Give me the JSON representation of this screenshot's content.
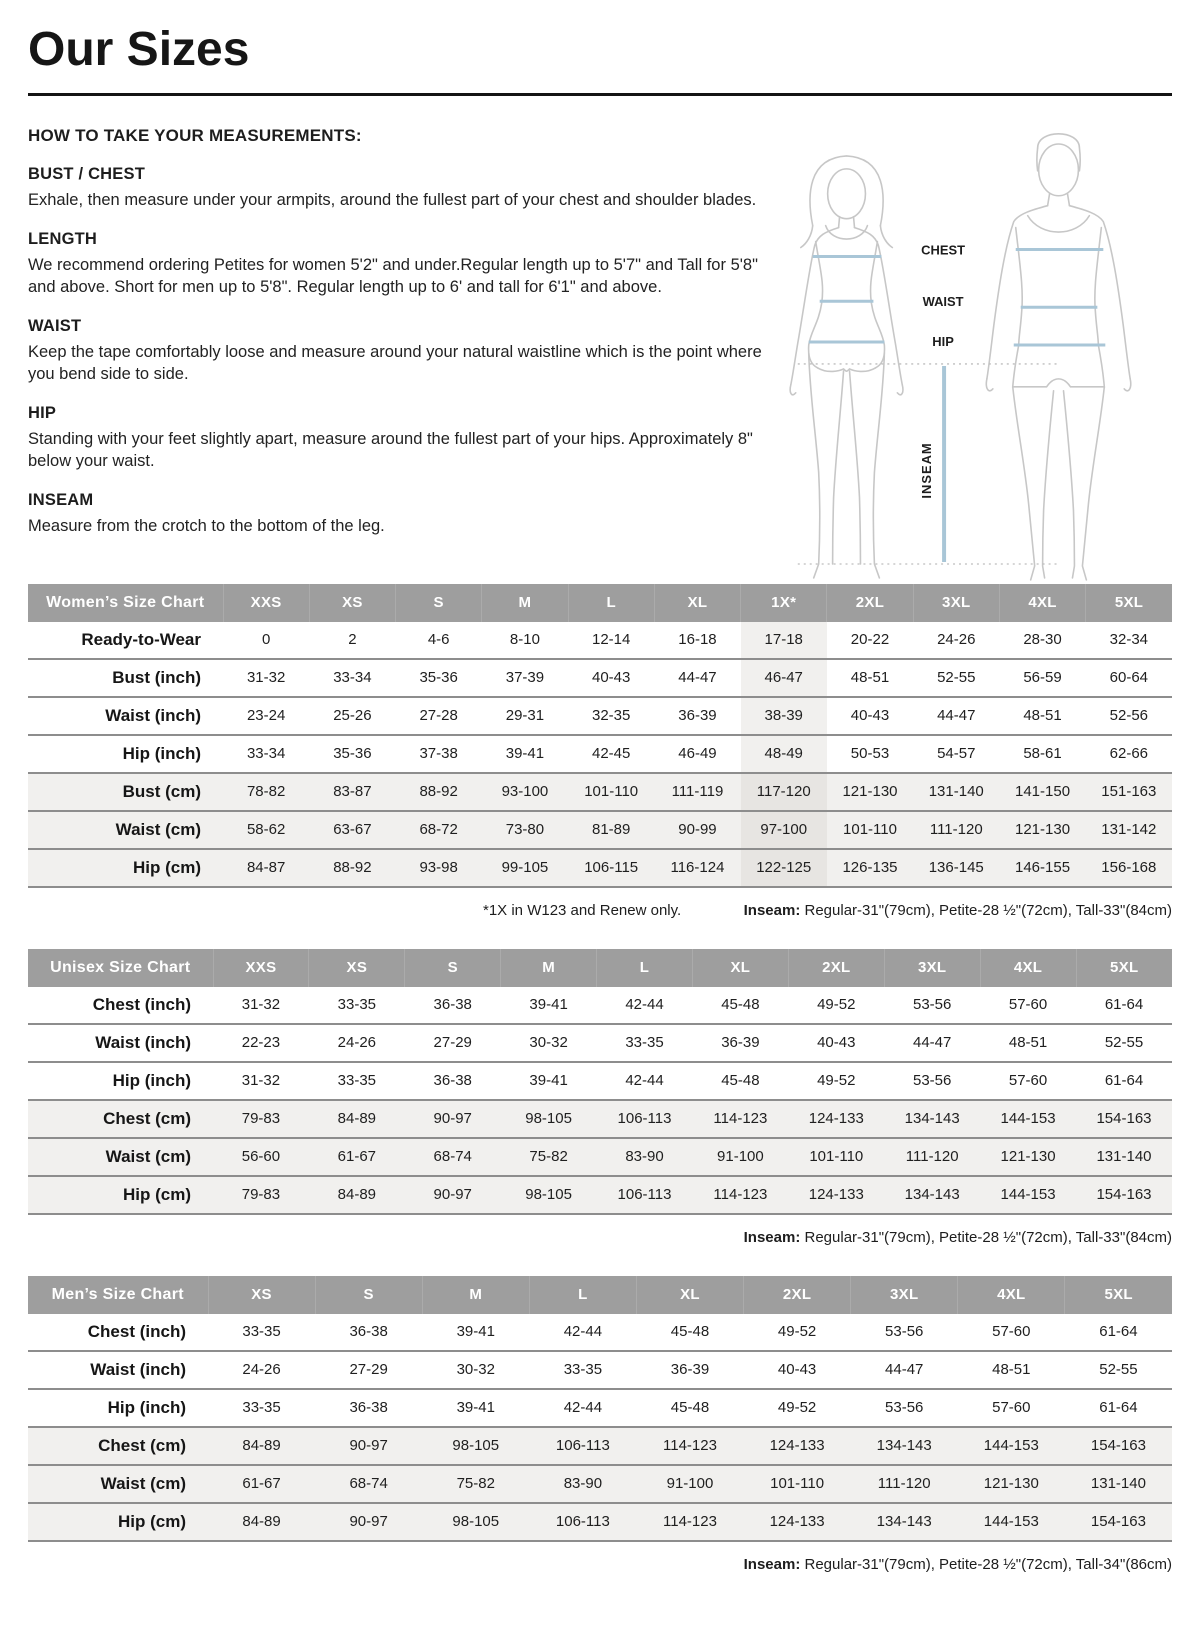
{
  "page": {
    "title": "Our Sizes",
    "how_to_heading": "HOW TO TAKE YOUR MEASUREMENTS:",
    "sections": [
      {
        "heading": "BUST / CHEST",
        "body": "Exhale, then measure under your armpits, around the fullest part of your chest and shoulder blades."
      },
      {
        "heading": "LENGTH",
        "body": "We recommend ordering Petites for women 5'2\" and under.Regular length up to 5'7\" and Tall for 5'8\" and above. Short for men up to 5'8\". Regular length up to 6' and tall for 6'1\" and above."
      },
      {
        "heading": "WAIST",
        "body": "Keep the tape comfortably loose and measure around your natural waistline which is the point where you bend side to side."
      },
      {
        "heading": "HIP",
        "body": "Standing with your feet slightly apart, measure around the fullest part of your hips. Approximately 8\" below your waist."
      },
      {
        "heading": "INSEAM",
        "body": "Measure from the crotch to the bottom of the leg."
      }
    ]
  },
  "diagram": {
    "labels": [
      "CHEST",
      "WAIST",
      "HIP",
      "INSEAM"
    ]
  },
  "colors": {
    "header_bg": "#9e9e9e",
    "shaded_row": "#f1f0ee",
    "highlight_col": "#f1f0ee",
    "highlight_col_shaded": "#e7e5e2",
    "measure_line": "#a9c6d7",
    "figure_outline": "#c7c7c7"
  },
  "tables": [
    {
      "name": "Women’s Size Chart",
      "sizes": [
        "XXS",
        "XS",
        "S",
        "M",
        "L",
        "XL",
        "1X*",
        "2XL",
        "3XL",
        "4XL",
        "5XL"
      ],
      "highlight_col": 6,
      "rows": [
        {
          "label": "Ready-to-Wear",
          "shaded": false,
          "values": [
            "0",
            "2",
            "4-6",
            "8-10",
            "12-14",
            "16-18",
            "17-18",
            "20-22",
            "24-26",
            "28-30",
            "32-34"
          ]
        },
        {
          "label": "Bust (inch)",
          "shaded": false,
          "values": [
            "31-32",
            "33-34",
            "35-36",
            "37-39",
            "40-43",
            "44-47",
            "46-47",
            "48-51",
            "52-55",
            "56-59",
            "60-64"
          ]
        },
        {
          "label": "Waist (inch)",
          "shaded": false,
          "values": [
            "23-24",
            "25-26",
            "27-28",
            "29-31",
            "32-35",
            "36-39",
            "38-39",
            "40-43",
            "44-47",
            "48-51",
            "52-56"
          ]
        },
        {
          "label": "Hip (inch)",
          "shaded": false,
          "values": [
            "33-34",
            "35-36",
            "37-38",
            "39-41",
            "42-45",
            "46-49",
            "48-49",
            "50-53",
            "54-57",
            "58-61",
            "62-66"
          ]
        },
        {
          "label": "Bust (cm)",
          "shaded": true,
          "values": [
            "78-82",
            "83-87",
            "88-92",
            "93-100",
            "101-110",
            "111-119",
            "117-120",
            "121-130",
            "131-140",
            "141-150",
            "151-163"
          ]
        },
        {
          "label": "Waist (cm)",
          "shaded": true,
          "values": [
            "58-62",
            "63-67",
            "68-72",
            "73-80",
            "81-89",
            "90-99",
            "97-100",
            "101-110",
            "111-120",
            "121-130",
            "131-142"
          ]
        },
        {
          "label": "Hip (cm)",
          "shaded": true,
          "values": [
            "84-87",
            "88-92",
            "93-98",
            "99-105",
            "106-115",
            "116-124",
            "122-125",
            "126-135",
            "136-145",
            "146-155",
            "156-168"
          ]
        }
      ],
      "footnote_left": "*1X in W123 and Renew only.",
      "footnote_bold": "Inseam:",
      "footnote_rest": " Regular-31\"(79cm), Petite-28 ½\"(72cm), Tall-33\"(84cm)"
    },
    {
      "name": "Unisex Size Chart",
      "sizes": [
        "XXS",
        "XS",
        "S",
        "M",
        "L",
        "XL",
        "2XL",
        "3XL",
        "4XL",
        "5XL"
      ],
      "highlight_col": -1,
      "rows": [
        {
          "label": "Chest (inch)",
          "shaded": false,
          "values": [
            "31-32",
            "33-35",
            "36-38",
            "39-41",
            "42-44",
            "45-48",
            "49-52",
            "53-56",
            "57-60",
            "61-64"
          ]
        },
        {
          "label": "Waist (inch)",
          "shaded": false,
          "values": [
            "22-23",
            "24-26",
            "27-29",
            "30-32",
            "33-35",
            "36-39",
            "40-43",
            "44-47",
            "48-51",
            "52-55"
          ]
        },
        {
          "label": "Hip (inch)",
          "shaded": false,
          "values": [
            "31-32",
            "33-35",
            "36-38",
            "39-41",
            "42-44",
            "45-48",
            "49-52",
            "53-56",
            "57-60",
            "61-64"
          ]
        },
        {
          "label": "Chest (cm)",
          "shaded": true,
          "values": [
            "79-83",
            "84-89",
            "90-97",
            "98-105",
            "106-113",
            "114-123",
            "124-133",
            "134-143",
            "144-153",
            "154-163"
          ]
        },
        {
          "label": "Waist (cm)",
          "shaded": true,
          "values": [
            "56-60",
            "61-67",
            "68-74",
            "75-82",
            "83-90",
            "91-100",
            "101-110",
            "111-120",
            "121-130",
            "131-140"
          ]
        },
        {
          "label": "Hip (cm)",
          "shaded": true,
          "values": [
            "79-83",
            "84-89",
            "90-97",
            "98-105",
            "106-113",
            "114-123",
            "124-133",
            "134-143",
            "144-153",
            "154-163"
          ]
        }
      ],
      "footnote_bold": "Inseam:",
      "footnote_rest": " Regular-31\"(79cm), Petite-28 ½\"(72cm), Tall-33\"(84cm)"
    },
    {
      "name": "Men’s Size Chart",
      "sizes": [
        "XS",
        "S",
        "M",
        "L",
        "XL",
        "2XL",
        "3XL",
        "4XL",
        "5XL"
      ],
      "highlight_col": -1,
      "rows": [
        {
          "label": "Chest (inch)",
          "shaded": false,
          "values": [
            "33-35",
            "36-38",
            "39-41",
            "42-44",
            "45-48",
            "49-52",
            "53-56",
            "57-60",
            "61-64"
          ]
        },
        {
          "label": "Waist (inch)",
          "shaded": false,
          "values": [
            "24-26",
            "27-29",
            "30-32",
            "33-35",
            "36-39",
            "40-43",
            "44-47",
            "48-51",
            "52-55"
          ]
        },
        {
          "label": "Hip (inch)",
          "shaded": false,
          "values": [
            "33-35",
            "36-38",
            "39-41",
            "42-44",
            "45-48",
            "49-52",
            "53-56",
            "57-60",
            "61-64"
          ]
        },
        {
          "label": "Chest (cm)",
          "shaded": true,
          "values": [
            "84-89",
            "90-97",
            "98-105",
            "106-113",
            "114-123",
            "124-133",
            "134-143",
            "144-153",
            "154-163"
          ]
        },
        {
          "label": "Waist (cm)",
          "shaded": true,
          "values": [
            "61-67",
            "68-74",
            "75-82",
            "83-90",
            "91-100",
            "101-110",
            "111-120",
            "121-130",
            "131-140"
          ]
        },
        {
          "label": "Hip (cm)",
          "shaded": true,
          "values": [
            "84-89",
            "90-97",
            "98-105",
            "106-113",
            "114-123",
            "124-133",
            "134-143",
            "144-153",
            "154-163"
          ]
        }
      ],
      "footnote_bold": "Inseam:",
      "footnote_rest": " Regular-31\"(79cm), Petite-28 ½\"(72cm), Tall-34\"(86cm)"
    }
  ]
}
